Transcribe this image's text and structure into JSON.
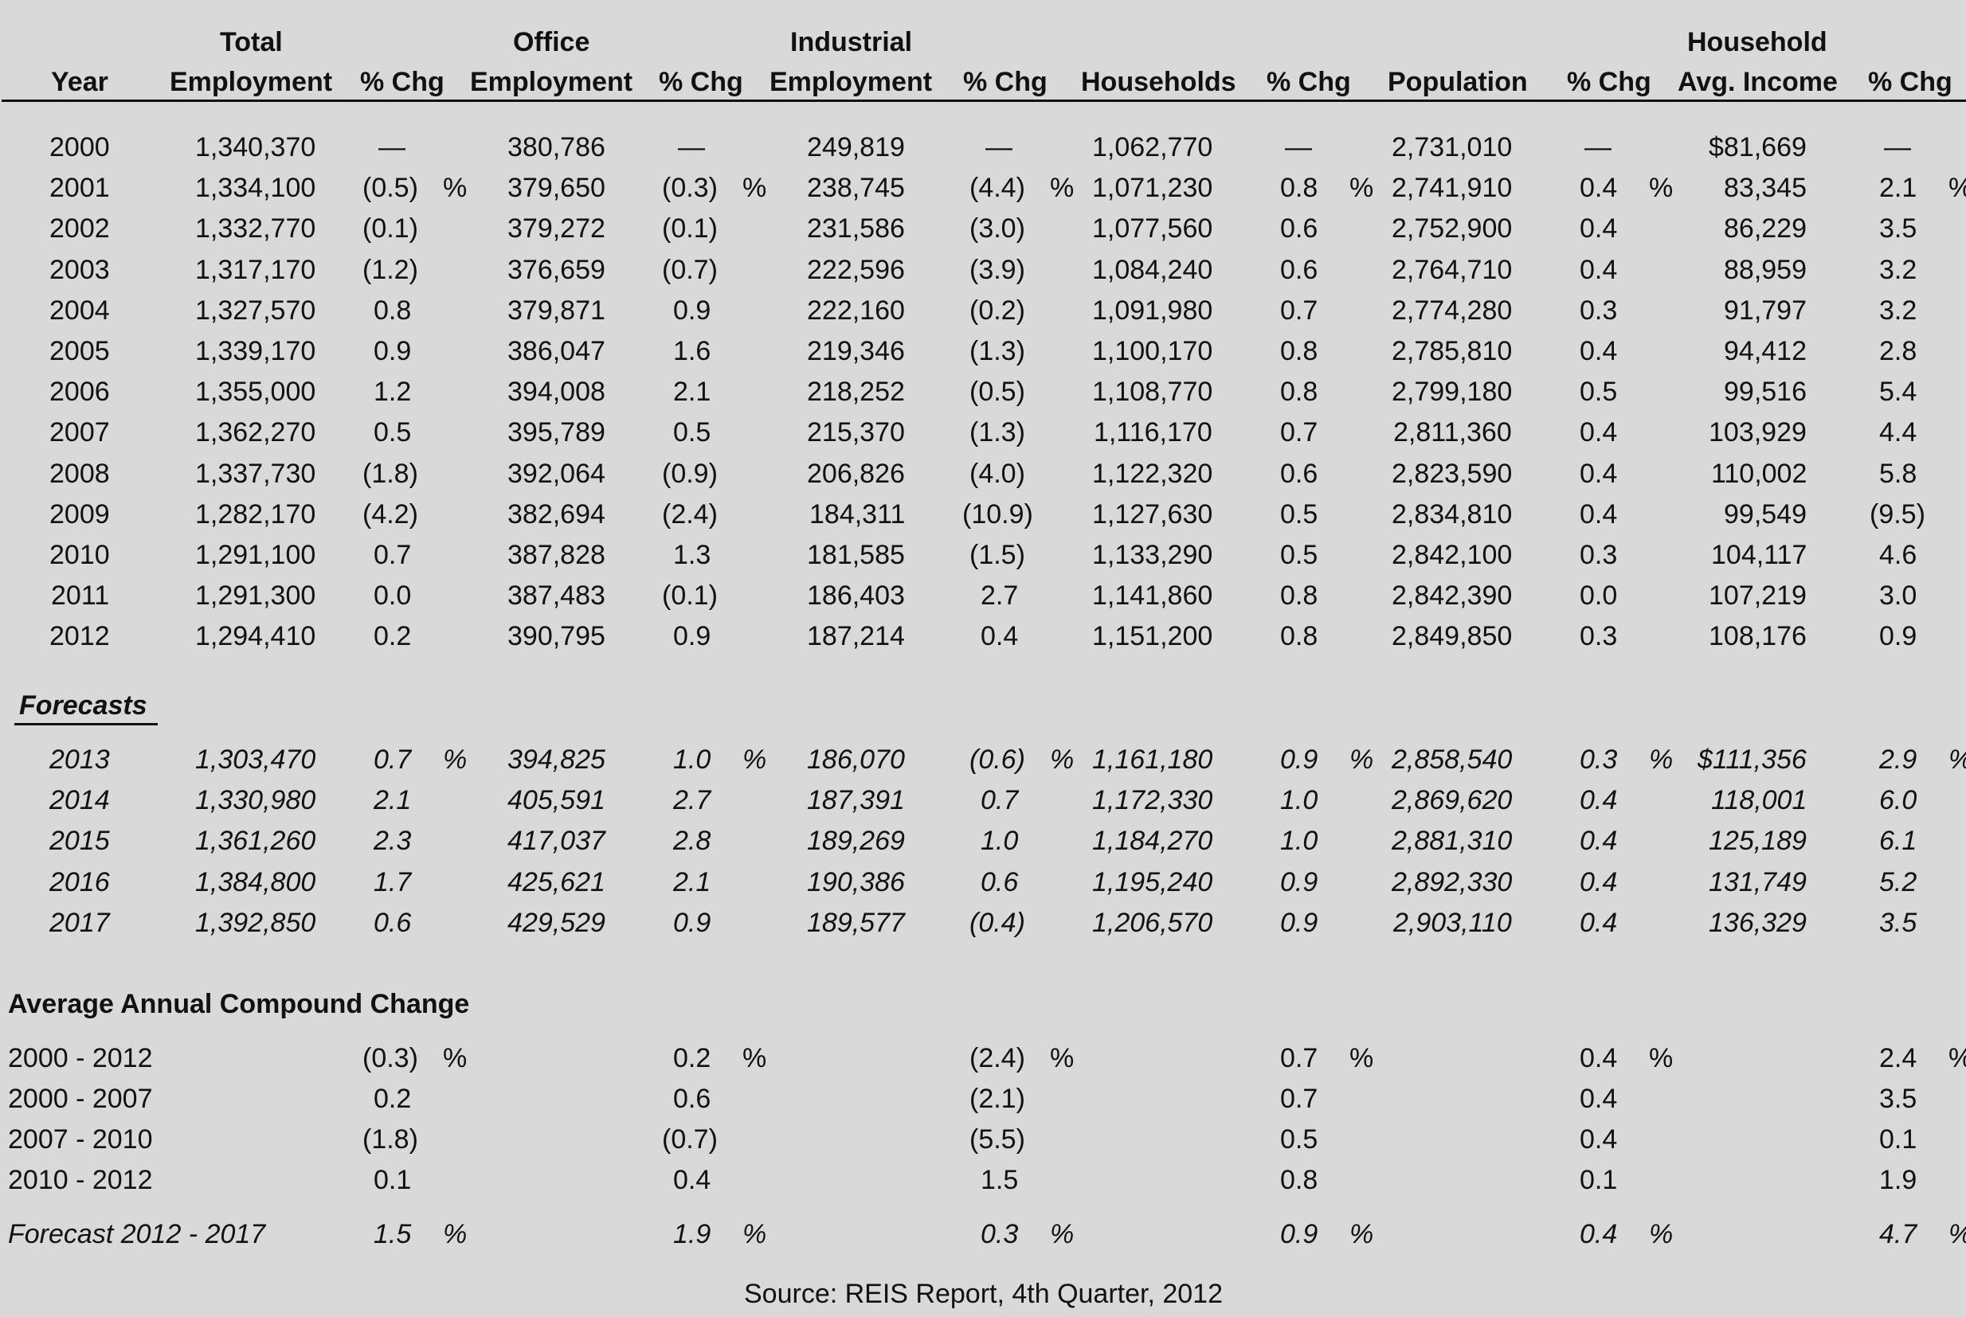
{
  "headers": {
    "top": [
      "",
      "Total",
      "",
      "Office",
      "",
      "Industrial",
      "",
      "",
      "",
      "",
      "",
      "Household",
      ""
    ],
    "bottom": [
      "Year",
      "Employment",
      "% Chg",
      "Employment",
      "% Chg",
      "Employment",
      "% Chg",
      "Households",
      "% Chg",
      "Population",
      "% Chg",
      "Avg. Income",
      "% Chg"
    ]
  },
  "historical": [
    {
      "year": "2000",
      "total": "1,340,370",
      "total_chg": "—",
      "office": "380,786",
      "office_chg": "—",
      "industrial": "249,819",
      "industrial_chg": "—",
      "households": "1,062,770",
      "households_chg": "—",
      "population": "2,731,010",
      "population_chg": "—",
      "income": "$81,669",
      "income_chg": "—",
      "pct": false
    },
    {
      "year": "2001",
      "total": "1,334,100",
      "total_chg": "(0.5)",
      "office": "379,650",
      "office_chg": "(0.3)",
      "industrial": "238,745",
      "industrial_chg": "(4.4)",
      "households": "1,071,230",
      "households_chg": "0.8",
      "population": "2,741,910",
      "population_chg": "0.4",
      "income": "83,345",
      "income_chg": "2.1",
      "pct": true
    },
    {
      "year": "2002",
      "total": "1,332,770",
      "total_chg": "(0.1)",
      "office": "379,272",
      "office_chg": "(0.1)",
      "industrial": "231,586",
      "industrial_chg": "(3.0)",
      "households": "1,077,560",
      "households_chg": "0.6",
      "population": "2,752,900",
      "population_chg": "0.4",
      "income": "86,229",
      "income_chg": "3.5",
      "pct": false
    },
    {
      "year": "2003",
      "total": "1,317,170",
      "total_chg": "(1.2)",
      "office": "376,659",
      "office_chg": "(0.7)",
      "industrial": "222,596",
      "industrial_chg": "(3.9)",
      "households": "1,084,240",
      "households_chg": "0.6",
      "population": "2,764,710",
      "population_chg": "0.4",
      "income": "88,959",
      "income_chg": "3.2",
      "pct": false
    },
    {
      "year": "2004",
      "total": "1,327,570",
      "total_chg": "0.8",
      "office": "379,871",
      "office_chg": "0.9",
      "industrial": "222,160",
      "industrial_chg": "(0.2)",
      "households": "1,091,980",
      "households_chg": "0.7",
      "population": "2,774,280",
      "population_chg": "0.3",
      "income": "91,797",
      "income_chg": "3.2",
      "pct": false
    },
    {
      "year": "2005",
      "total": "1,339,170",
      "total_chg": "0.9",
      "office": "386,047",
      "office_chg": "1.6",
      "industrial": "219,346",
      "industrial_chg": "(1.3)",
      "households": "1,100,170",
      "households_chg": "0.8",
      "population": "2,785,810",
      "population_chg": "0.4",
      "income": "94,412",
      "income_chg": "2.8",
      "pct": false
    },
    {
      "year": "2006",
      "total": "1,355,000",
      "total_chg": "1.2",
      "office": "394,008",
      "office_chg": "2.1",
      "industrial": "218,252",
      "industrial_chg": "(0.5)",
      "households": "1,108,770",
      "households_chg": "0.8",
      "population": "2,799,180",
      "population_chg": "0.5",
      "income": "99,516",
      "income_chg": "5.4",
      "pct": false
    },
    {
      "year": "2007",
      "total": "1,362,270",
      "total_chg": "0.5",
      "office": "395,789",
      "office_chg": "0.5",
      "industrial": "215,370",
      "industrial_chg": "(1.3)",
      "households": "1,116,170",
      "households_chg": "0.7",
      "population": "2,811,360",
      "population_chg": "0.4",
      "income": "103,929",
      "income_chg": "4.4",
      "pct": false
    },
    {
      "year": "2008",
      "total": "1,337,730",
      "total_chg": "(1.8)",
      "office": "392,064",
      "office_chg": "(0.9)",
      "industrial": "206,826",
      "industrial_chg": "(4.0)",
      "households": "1,122,320",
      "households_chg": "0.6",
      "population": "2,823,590",
      "population_chg": "0.4",
      "income": "110,002",
      "income_chg": "5.8",
      "pct": false
    },
    {
      "year": "2009",
      "total": "1,282,170",
      "total_chg": "(4.2)",
      "office": "382,694",
      "office_chg": "(2.4)",
      "industrial": "184,311",
      "industrial_chg": "(10.9)",
      "households": "1,127,630",
      "households_chg": "0.5",
      "population": "2,834,810",
      "population_chg": "0.4",
      "income": "99,549",
      "income_chg": "(9.5)",
      "pct": false
    },
    {
      "year": "2010",
      "total": "1,291,100",
      "total_chg": "0.7",
      "office": "387,828",
      "office_chg": "1.3",
      "industrial": "181,585",
      "industrial_chg": "(1.5)",
      "households": "1,133,290",
      "households_chg": "0.5",
      "population": "2,842,100",
      "population_chg": "0.3",
      "income": "104,117",
      "income_chg": "4.6",
      "pct": false
    },
    {
      "year": "2011",
      "total": "1,291,300",
      "total_chg": "0.0",
      "office": "387,483",
      "office_chg": "(0.1)",
      "industrial": "186,403",
      "industrial_chg": "2.7",
      "households": "1,141,860",
      "households_chg": "0.8",
      "population": "2,842,390",
      "population_chg": "0.0",
      "income": "107,219",
      "income_chg": "3.0",
      "pct": false
    },
    {
      "year": "2012",
      "total": "1,294,410",
      "total_chg": "0.2",
      "office": "390,795",
      "office_chg": "0.9",
      "industrial": "187,214",
      "industrial_chg": "0.4",
      "households": "1,151,200",
      "households_chg": "0.8",
      "population": "2,849,850",
      "population_chg": "0.3",
      "income": "108,176",
      "income_chg": "0.9",
      "pct": false
    }
  ],
  "forecasts_label": "Forecasts",
  "forecasts": [
    {
      "year": "2013",
      "total": "1,303,470",
      "total_chg": "0.7",
      "office": "394,825",
      "office_chg": "1.0",
      "industrial": "186,070",
      "industrial_chg": "(0.6)",
      "households": "1,161,180",
      "households_chg": "0.9",
      "population": "2,858,540",
      "population_chg": "0.3",
      "income": "$111,356",
      "income_chg": "2.9",
      "pct": true
    },
    {
      "year": "2014",
      "total": "1,330,980",
      "total_chg": "2.1",
      "office": "405,591",
      "office_chg": "2.7",
      "industrial": "187,391",
      "industrial_chg": "0.7",
      "households": "1,172,330",
      "households_chg": "1.0",
      "population": "2,869,620",
      "population_chg": "0.4",
      "income": "118,001",
      "income_chg": "6.0",
      "pct": false
    },
    {
      "year": "2015",
      "total": "1,361,260",
      "total_chg": "2.3",
      "office": "417,037",
      "office_chg": "2.8",
      "industrial": "189,269",
      "industrial_chg": "1.0",
      "households": "1,184,270",
      "households_chg": "1.0",
      "population": "2,881,310",
      "population_chg": "0.4",
      "income": "125,189",
      "income_chg": "6.1",
      "pct": false
    },
    {
      "year": "2016",
      "total": "1,384,800",
      "total_chg": "1.7",
      "office": "425,621",
      "office_chg": "2.1",
      "industrial": "190,386",
      "industrial_chg": "0.6",
      "households": "1,195,240",
      "households_chg": "0.9",
      "population": "2,892,330",
      "population_chg": "0.4",
      "income": "131,749",
      "income_chg": "5.2",
      "pct": false
    },
    {
      "year": "2017",
      "total": "1,392,850",
      "total_chg": "0.6",
      "office": "429,529",
      "office_chg": "0.9",
      "industrial": "189,577",
      "industrial_chg": "(0.4)",
      "households": "1,206,570",
      "households_chg": "0.9",
      "population": "2,903,110",
      "population_chg": "0.4",
      "income": "136,329",
      "income_chg": "3.5",
      "pct": false
    }
  ],
  "compound_label": "Average Annual Compound Change",
  "compound": [
    {
      "period": "2000 - 2012",
      "total_chg": "(0.3)",
      "office_chg": "0.2",
      "industrial_chg": "(2.4)",
      "households_chg": "0.7",
      "population_chg": "0.4",
      "income_chg": "2.4",
      "pct": true,
      "italic": false
    },
    {
      "period": "2000 - 2007",
      "total_chg": "0.2",
      "office_chg": "0.6",
      "industrial_chg": "(2.1)",
      "households_chg": "0.7",
      "population_chg": "0.4",
      "income_chg": "3.5",
      "pct": false,
      "italic": false
    },
    {
      "period": "2007 - 2010",
      "total_chg": "(1.8)",
      "office_chg": "(0.7)",
      "industrial_chg": "(5.5)",
      "households_chg": "0.5",
      "population_chg": "0.4",
      "income_chg": "0.1",
      "pct": false,
      "italic": false
    },
    {
      "period": "2010 - 2012",
      "total_chg": "0.1",
      "office_chg": "0.4",
      "industrial_chg": "1.5",
      "households_chg": "0.8",
      "population_chg": "0.1",
      "income_chg": "1.9",
      "pct": false,
      "italic": false
    },
    {
      "period": "Forecast 2012 - 2017",
      "total_chg": "1.5",
      "office_chg": "1.9",
      "industrial_chg": "0.3",
      "households_chg": "0.9",
      "population_chg": "0.4",
      "income_chg": "4.7",
      "pct": true,
      "italic": true
    }
  ],
  "pct_symbol": "%",
  "source": "Source: REIS Report, 4th Quarter, 2012"
}
